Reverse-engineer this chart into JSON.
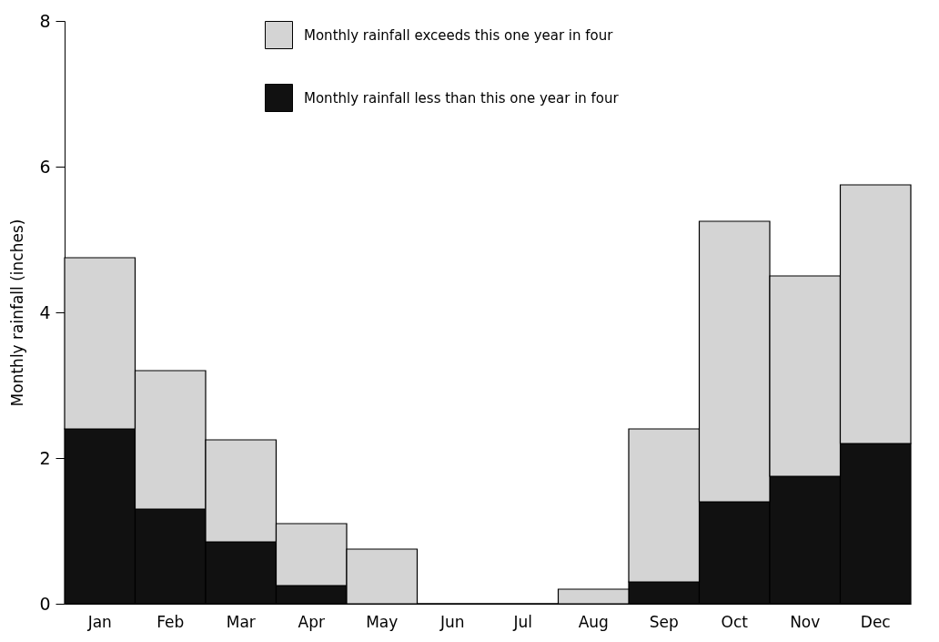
{
  "chart_data": {
    "type": "bar",
    "stacked": true,
    "ylabel": "Monthly rainfall (inches)",
    "categories": [
      "Jan",
      "Feb",
      "Mar",
      "Apr",
      "May",
      "Jun",
      "Jul",
      "Aug",
      "Sep",
      "Oct",
      "Nov",
      "Dec"
    ],
    "series": [
      {
        "name": "Monthly rainfall less than this one year in four",
        "color": "#111111",
        "values": [
          2.4,
          1.3,
          0.85,
          0.25,
          0,
          0,
          0,
          0,
          0.3,
          1.4,
          1.75,
          2.2
        ]
      },
      {
        "name": "Monthly rainfall exceeds this one year in four",
        "color": "#d4d4d4",
        "values": [
          2.35,
          1.9,
          1.4,
          0.85,
          0.75,
          0,
          0,
          0.2,
          2.1,
          3.85,
          2.75,
          3.55
        ]
      }
    ],
    "ylim": [
      0,
      8
    ],
    "yticks": [
      0,
      2,
      4,
      6,
      8
    ],
    "grid": false,
    "legend": "top"
  }
}
